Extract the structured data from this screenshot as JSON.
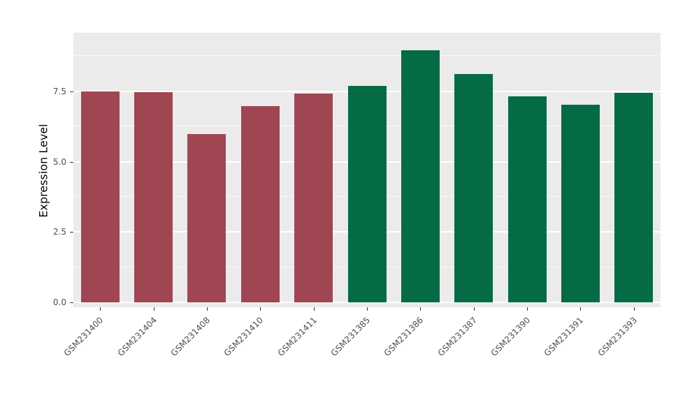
{
  "chart_data": {
    "type": "bar",
    "title": "",
    "xlabel": "",
    "ylabel": "Expression Level",
    "ylim": [
      0,
      9.75
    ],
    "yticks": [
      0.0,
      2.5,
      5.0,
      7.5
    ],
    "ytick_labels": [
      "0.0",
      "2.5",
      "5.0",
      "7.5"
    ],
    "yticks_minor": [
      1.25,
      3.75,
      6.25,
      8.75
    ],
    "grid": "on",
    "legend_position": "none",
    "panel_background": "#EBEBEB",
    "grid_color": "#FFFFFF",
    "bars": [
      {
        "label": "GSM231400",
        "value": 7.5,
        "color": "#A04552",
        "group": "group-1"
      },
      {
        "label": "GSM231404",
        "value": 7.48,
        "color": "#A04552",
        "group": "group-1"
      },
      {
        "label": "GSM231408",
        "value": 5.97,
        "color": "#A04552",
        "group": "group-1"
      },
      {
        "label": "GSM231410",
        "value": 6.97,
        "color": "#A04552",
        "group": "group-1"
      },
      {
        "label": "GSM231411",
        "value": 7.42,
        "color": "#A04552",
        "group": "group-1"
      },
      {
        "label": "GSM231385",
        "value": 7.7,
        "color": "#046B45",
        "group": "group-2"
      },
      {
        "label": "GSM231386",
        "value": 8.97,
        "color": "#046B45",
        "group": "group-2"
      },
      {
        "label": "GSM231387",
        "value": 8.12,
        "color": "#046B45",
        "group": "group-2"
      },
      {
        "label": "GSM231390",
        "value": 7.33,
        "color": "#046B45",
        "group": "group-2"
      },
      {
        "label": "GSM231391",
        "value": 7.03,
        "color": "#046B45",
        "group": "group-2"
      },
      {
        "label": "GSM231393",
        "value": 7.45,
        "color": "#046B45",
        "group": "group-2"
      }
    ]
  }
}
